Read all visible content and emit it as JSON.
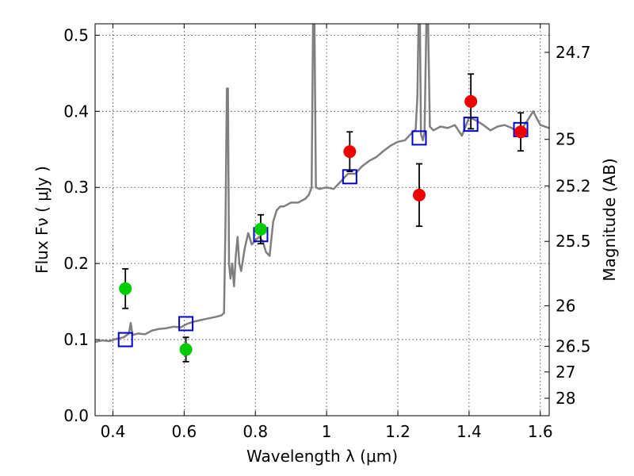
{
  "chart_data": {
    "type": "scatter",
    "xlabel": "Wavelength  λ (μm)",
    "ylabel": "Flux  Fν  ( μJy )",
    "right_ylabel": "Magnitude (AB)",
    "xlim": [
      0.35,
      1.625
    ],
    "ylim": [
      0.0,
      0.515
    ],
    "grid": true,
    "x_ticks": [
      0.4,
      0.6,
      0.8,
      1.0,
      1.2,
      1.4,
      1.6
    ],
    "x_tick_labels": [
      "0.4",
      "0.6",
      "0.8",
      "1",
      "1.2",
      "1.4",
      "1.6"
    ],
    "y_ticks": [
      0.0,
      0.1,
      0.2,
      0.3,
      0.4,
      0.5
    ],
    "y_tick_labels": [
      "0.0",
      "0.1",
      "0.2",
      "0.3",
      "0.4",
      "0.5"
    ],
    "mag_ticks": [
      {
        "label": "24.7",
        "flux": 0.4775
      },
      {
        "label": "25",
        "flux": 0.3631
      },
      {
        "label": "25.2",
        "flux": 0.302
      },
      {
        "label": "25.5",
        "flux": 0.2291
      },
      {
        "label": "26",
        "flux": 0.1445
      },
      {
        "label": "26.5",
        "flux": 0.0912
      },
      {
        "label": "27",
        "flux": 0.0575
      },
      {
        "label": "28",
        "flux": 0.0229
      }
    ],
    "series": [
      {
        "style": "line",
        "color": "#7f7f7f",
        "points": [
          [
            0.35,
            0.097
          ],
          [
            0.37,
            0.099
          ],
          [
            0.39,
            0.098
          ],
          [
            0.41,
            0.101
          ],
          [
            0.43,
            0.103
          ],
          [
            0.445,
            0.108
          ],
          [
            0.45,
            0.122
          ],
          [
            0.455,
            0.106
          ],
          [
            0.47,
            0.108
          ],
          [
            0.49,
            0.107
          ],
          [
            0.51,
            0.112
          ],
          [
            0.53,
            0.114
          ],
          [
            0.55,
            0.115
          ],
          [
            0.57,
            0.117
          ],
          [
            0.59,
            0.116
          ],
          [
            0.61,
            0.121
          ],
          [
            0.63,
            0.124
          ],
          [
            0.65,
            0.126
          ],
          [
            0.67,
            0.128
          ],
          [
            0.69,
            0.13
          ],
          [
            0.705,
            0.132
          ],
          [
            0.712,
            0.135
          ],
          [
            0.716,
            0.25
          ],
          [
            0.72,
            0.43
          ],
          [
            0.723,
            0.43
          ],
          [
            0.726,
            0.2
          ],
          [
            0.73,
            0.18
          ],
          [
            0.735,
            0.2
          ],
          [
            0.74,
            0.17
          ],
          [
            0.745,
            0.21
          ],
          [
            0.75,
            0.235
          ],
          [
            0.755,
            0.2
          ],
          [
            0.76,
            0.19
          ],
          [
            0.77,
            0.22
          ],
          [
            0.78,
            0.24
          ],
          [
            0.79,
            0.225
          ],
          [
            0.8,
            0.23
          ],
          [
            0.81,
            0.235
          ],
          [
            0.82,
            0.23
          ],
          [
            0.83,
            0.215
          ],
          [
            0.84,
            0.21
          ],
          [
            0.85,
            0.255
          ],
          [
            0.86,
            0.27
          ],
          [
            0.87,
            0.275
          ],
          [
            0.88,
            0.275
          ],
          [
            0.9,
            0.28
          ],
          [
            0.92,
            0.28
          ],
          [
            0.94,
            0.285
          ],
          [
            0.95,
            0.29
          ],
          [
            0.958,
            0.3
          ],
          [
            0.962,
            0.515
          ],
          [
            0.966,
            0.515
          ],
          [
            0.97,
            0.3
          ],
          [
            0.98,
            0.298
          ],
          [
            1.0,
            0.3
          ],
          [
            1.02,
            0.298
          ],
          [
            1.04,
            0.308
          ],
          [
            1.06,
            0.318
          ],
          [
            1.08,
            0.318
          ],
          [
            1.1,
            0.328
          ],
          [
            1.12,
            0.335
          ],
          [
            1.14,
            0.34
          ],
          [
            1.16,
            0.348
          ],
          [
            1.18,
            0.355
          ],
          [
            1.2,
            0.36
          ],
          [
            1.22,
            0.362
          ],
          [
            1.24,
            0.372
          ],
          [
            1.25,
            0.376
          ],
          [
            1.255,
            0.42
          ],
          [
            1.258,
            0.515
          ],
          [
            1.262,
            0.515
          ],
          [
            1.265,
            0.37
          ],
          [
            1.27,
            0.362
          ],
          [
            1.275,
            0.372
          ],
          [
            1.28,
            0.515
          ],
          [
            1.285,
            0.515
          ],
          [
            1.29,
            0.38
          ],
          [
            1.3,
            0.375
          ],
          [
            1.32,
            0.38
          ],
          [
            1.34,
            0.378
          ],
          [
            1.36,
            0.382
          ],
          [
            1.38,
            0.368
          ],
          [
            1.4,
            0.392
          ],
          [
            1.42,
            0.388
          ],
          [
            1.44,
            0.382
          ],
          [
            1.46,
            0.375
          ],
          [
            1.48,
            0.38
          ],
          [
            1.5,
            0.382
          ],
          [
            1.52,
            0.378
          ],
          [
            1.54,
            0.372
          ],
          [
            1.56,
            0.385
          ],
          [
            1.58,
            0.4
          ],
          [
            1.6,
            0.382
          ],
          [
            1.625,
            0.378
          ]
        ]
      },
      {
        "style": "open-square",
        "color": "#0000cc",
        "points": [
          [
            0.435,
            0.1
          ],
          [
            0.605,
            0.121
          ],
          [
            0.815,
            0.238
          ],
          [
            1.065,
            0.314
          ],
          [
            1.26,
            0.365
          ],
          [
            1.405,
            0.383
          ],
          [
            1.545,
            0.376
          ]
        ]
      },
      {
        "style": "filled-circle",
        "color": "#00cc00",
        "points": [
          {
            "x": 0.435,
            "y": 0.167,
            "err": 0.026
          },
          {
            "x": 0.605,
            "y": 0.087,
            "err": 0.016
          },
          {
            "x": 0.815,
            "y": 0.245,
            "err": 0.019
          }
        ]
      },
      {
        "style": "filled-circle",
        "color": "#ee0000",
        "points": [
          {
            "x": 1.065,
            "y": 0.347,
            "err": 0.026
          },
          {
            "x": 1.26,
            "y": 0.29,
            "err": 0.041
          },
          {
            "x": 1.405,
            "y": 0.413,
            "err": 0.036
          },
          {
            "x": 1.545,
            "y": 0.373,
            "err": 0.025
          }
        ]
      }
    ]
  }
}
